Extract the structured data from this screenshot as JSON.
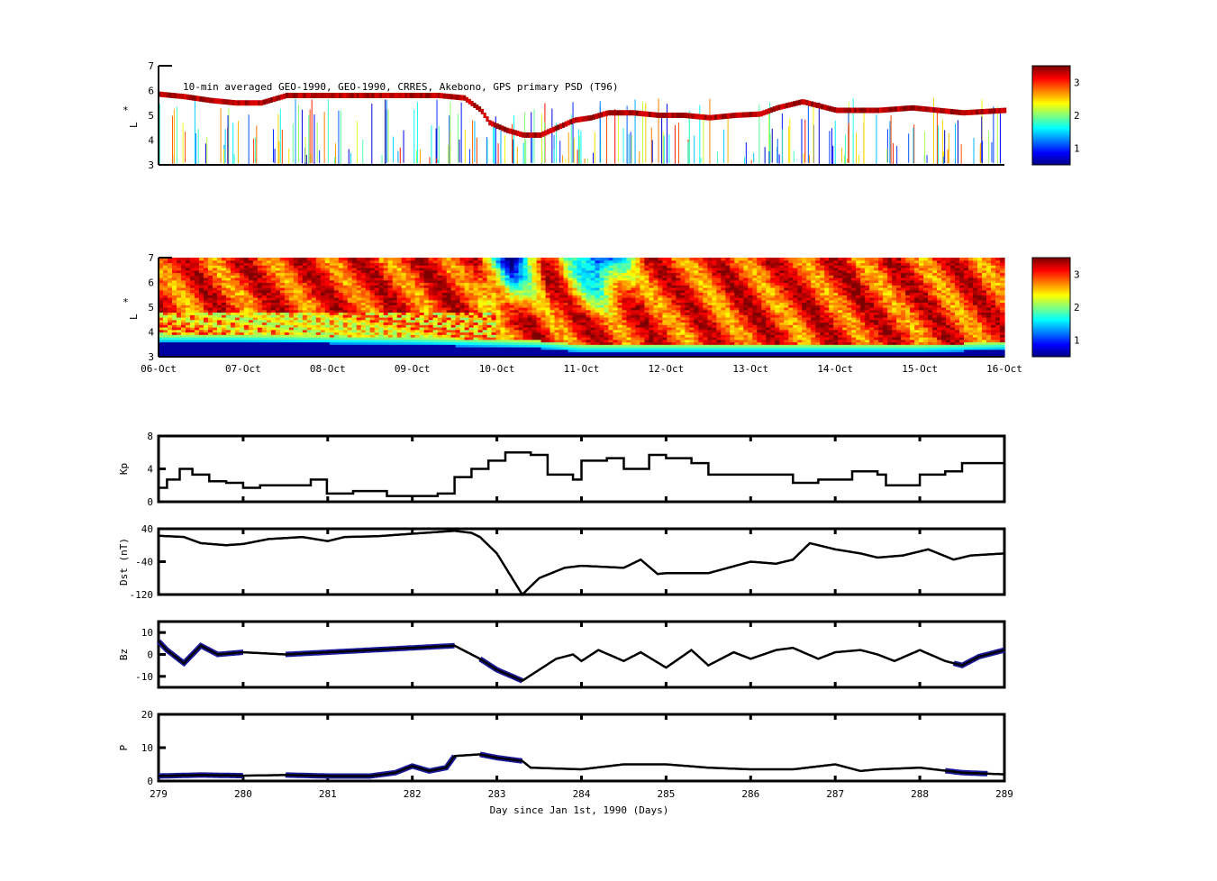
{
  "chart_data": [
    {
      "type": "heatmap",
      "id": "psd_observed",
      "title": "10-min averaged GEO-1990, GEO-1990, CRRES, Akebono, GPS  primary PSD (T96)",
      "ylabel": "L*",
      "ylabel_parts": [
        "*",
        "L"
      ],
      "ylim": [
        3,
        7
      ],
      "yticks": [
        "3",
        "4",
        "5",
        "6",
        "7"
      ],
      "xlim": [
        279,
        289
      ],
      "colorbar": {
        "range": [
          0.5,
          3.5
        ],
        "ticks": [
          "1",
          "2",
          "3"
        ],
        "colormap": "jet"
      },
      "track": [
        [
          279,
          5.85
        ],
        [
          279.3,
          5.75
        ],
        [
          279.6,
          5.6
        ],
        [
          279.9,
          5.5
        ],
        [
          280.2,
          5.5
        ],
        [
          280.5,
          5.8
        ],
        [
          280.9,
          5.8
        ],
        [
          281.3,
          5.8
        ],
        [
          281.6,
          5.8
        ],
        [
          282,
          5.8
        ],
        [
          282.3,
          5.8
        ],
        [
          282.6,
          5.7
        ],
        [
          282.8,
          5.2
        ],
        [
          282.9,
          4.7
        ],
        [
          283.1,
          4.4
        ],
        [
          283.3,
          4.2
        ],
        [
          283.5,
          4.2
        ],
        [
          283.7,
          4.5
        ],
        [
          283.9,
          4.8
        ],
        [
          284.1,
          4.9
        ],
        [
          284.3,
          5.1
        ],
        [
          284.6,
          5.1
        ],
        [
          284.9,
          5.0
        ],
        [
          285.2,
          5.0
        ],
        [
          285.5,
          4.9
        ],
        [
          285.8,
          5.0
        ],
        [
          286.1,
          5.05
        ],
        [
          286.3,
          5.3
        ],
        [
          286.6,
          5.55
        ],
        [
          287,
          5.2
        ],
        [
          287.5,
          5.2
        ],
        [
          287.9,
          5.3
        ],
        [
          288.2,
          5.2
        ],
        [
          288.5,
          5.1
        ],
        [
          289,
          5.2
        ]
      ]
    },
    {
      "type": "heatmap",
      "id": "psd_assimilated",
      "ylabel_parts": [
        "*",
        "L"
      ],
      "ylim": [
        3,
        7
      ],
      "yticks": [
        "3",
        "4",
        "5",
        "6",
        "7"
      ],
      "xlim": [
        279,
        289
      ],
      "xticks": [
        "06-Oct",
        "07-Oct",
        "08-Oct",
        "09-Oct",
        "10-Oct",
        "11-Oct",
        "12-Oct",
        "13-Oct",
        "14-Oct",
        "15-Oct",
        "16-Oct"
      ],
      "colorbar": {
        "range": [
          0.5,
          3.5
        ],
        "ticks": [
          "1",
          "2",
          "3"
        ],
        "colormap": "jet"
      },
      "inner_edge_L": [
        [
          279,
          3.6
        ],
        [
          280,
          3.6
        ],
        [
          281,
          3.55
        ],
        [
          282,
          3.5
        ],
        [
          283,
          3.4
        ],
        [
          283.5,
          3.35
        ],
        [
          284,
          3.2
        ],
        [
          285,
          3.2
        ],
        [
          286,
          3.2
        ],
        [
          287,
          3.2
        ],
        [
          288,
          3.2
        ],
        [
          289,
          3.3
        ]
      ],
      "dropout": [
        [
          283.05,
          283.3
        ],
        [
          284.0,
          284.4
        ]
      ]
    },
    {
      "type": "line",
      "id": "kp",
      "ylabel": "Kp",
      "ylim": [
        0,
        8
      ],
      "yticks": [
        "0",
        "4",
        "8"
      ],
      "xlim": [
        279,
        289
      ],
      "x": [
        279,
        279.1,
        279.25,
        279.4,
        279.6,
        279.8,
        280,
        280.2,
        280.5,
        280.8,
        280.99,
        281.3,
        281.7,
        282,
        282.3,
        282.5,
        282.7,
        282.9,
        283.1,
        283.4,
        283.6,
        283.9,
        284,
        284.3,
        284.5,
        284.8,
        285,
        285.3,
        285.5,
        286,
        286.4,
        286.5,
        286.8,
        287,
        287.2,
        287.5,
        287.6,
        288,
        288.3,
        288.5,
        288.8,
        289
      ],
      "y": [
        1.7,
        2.7,
        4,
        3.3,
        2.5,
        2.3,
        1.7,
        2,
        2,
        2.7,
        1,
        1.3,
        0.7,
        0.7,
        1,
        3,
        4,
        5,
        6,
        5.7,
        3.3,
        2.7,
        5,
        5.3,
        4,
        5.7,
        5.3,
        4.7,
        3.3,
        3.3,
        3.3,
        2.3,
        2.7,
        2.7,
        3.7,
        3.3,
        2,
        3.3,
        3.7,
        4.7,
        4.7,
        2.7
      ]
    },
    {
      "type": "line",
      "id": "dst",
      "ylabel": "Dst (nT)",
      "ylim": [
        -120,
        40
      ],
      "yticks": [
        "40",
        "-40",
        "-120"
      ],
      "xlim": [
        279,
        289
      ],
      "x": [
        279,
        279.3,
        279.5,
        279.8,
        280,
        280.3,
        280.7,
        281,
        281.2,
        281.6,
        282,
        282.5,
        282.7,
        282.8,
        283,
        283.3,
        283.5,
        283.8,
        284,
        284.5,
        284.7,
        284.9,
        285,
        285.5,
        286,
        286.3,
        286.5,
        286.7,
        287,
        287.3,
        287.5,
        287.8,
        288.1,
        288.4,
        288.6,
        289
      ],
      "y": [
        23,
        20,
        5,
        0,
        3,
        15,
        20,
        10,
        20,
        22,
        28,
        35,
        30,
        20,
        -20,
        -120,
        -80,
        -55,
        -50,
        -55,
        -35,
        -70,
        -68,
        -68,
        -40,
        -45,
        -35,
        5,
        -10,
        -20,
        -30,
        -25,
        -10,
        -35,
        -25,
        -20
      ]
    },
    {
      "type": "line",
      "id": "bz",
      "ylabel": "Bz",
      "ylim": [
        -15,
        15
      ],
      "yticks": [
        "10",
        "0",
        "-10"
      ],
      "xlim": [
        279,
        289
      ],
      "x": [
        279,
        279.1,
        279.3,
        279.5,
        279.7,
        280,
        280.5,
        281,
        281.5,
        282,
        282.5,
        282.8,
        283,
        283.3,
        283.5,
        283.7,
        283.9,
        284,
        284.2,
        284.5,
        284.7,
        285,
        285.3,
        285.5,
        285.8,
        286,
        286.3,
        286.5,
        286.8,
        287,
        287.3,
        287.5,
        287.7,
        288,
        288.3,
        288.5,
        288.7,
        289
      ],
      "y": [
        6,
        2,
        -4,
        4,
        0,
        1,
        0,
        1,
        2,
        3,
        4,
        -2,
        -7,
        -12,
        -7,
        -2,
        0,
        -3,
        2,
        -3,
        1,
        -6,
        2,
        -5,
        1,
        -2,
        2,
        3,
        -2,
        1,
        2,
        0,
        -3,
        2,
        -3,
        -5,
        -1,
        2
      ],
      "observed_ranges": [
        [
          279,
          280
        ],
        [
          280.5,
          282.5
        ],
        [
          282.8,
          283.3
        ],
        [
          288.4,
          289
        ]
      ]
    },
    {
      "type": "line",
      "id": "p",
      "ylabel": "P",
      "ylim": [
        0,
        20
      ],
      "yticks": [
        "0",
        "10",
        "20"
      ],
      "xlim": [
        279,
        289
      ],
      "xticks": [
        "279",
        "280",
        "281",
        "282",
        "283",
        "284",
        "285",
        "286",
        "287",
        "288",
        "289"
      ],
      "xlabel": "Day since Jan 1st, 1990 (Days)",
      "x": [
        279,
        279.5,
        280,
        280.5,
        281,
        281.5,
        281.8,
        282,
        282.2,
        282.4,
        282.5,
        282.8,
        283,
        283.3,
        283.4,
        284,
        284.5,
        285,
        285.5,
        286,
        286.5,
        287,
        287.3,
        287.5,
        288,
        288.5,
        289
      ],
      "y": [
        1.5,
        1.8,
        1.6,
        1.8,
        1.5,
        1.5,
        2.5,
        4.5,
        3,
        4,
        7.5,
        8,
        7,
        6,
        4,
        3.5,
        5,
        5,
        4,
        3.5,
        3.5,
        5,
        3,
        3.5,
        4,
        2.5,
        2
      ],
      "observed_ranges": [
        [
          279,
          280
        ],
        [
          280.5,
          282.5
        ],
        [
          282.8,
          283.3
        ],
        [
          288.3,
          288.8
        ]
      ]
    }
  ]
}
